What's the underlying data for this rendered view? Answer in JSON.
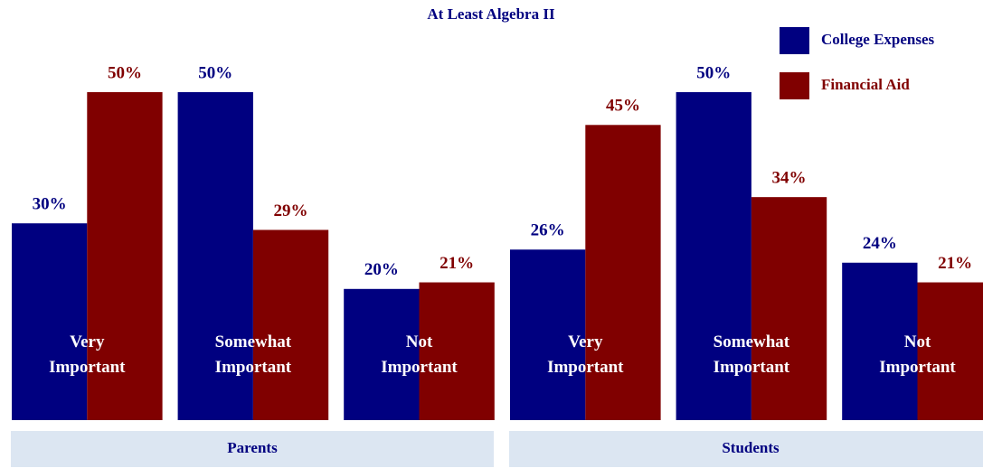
{
  "chart_data": [
    {
      "type": "bar",
      "title": "At Least Algebra II",
      "xlabel": "Parents",
      "categories": [
        "Very Important",
        "Somewhat Important",
        "Not Important"
      ],
      "ylim": [
        0,
        50
      ],
      "series": [
        {
          "name": "College Expenses",
          "color": "#000080",
          "values": [
            30,
            50,
            20
          ],
          "value_labels": [
            "30%",
            "50%",
            "20%"
          ]
        },
        {
          "name": "Financial Aid",
          "color": "#800000",
          "values": [
            50,
            29,
            21
          ],
          "value_labels": [
            "50%",
            "29%",
            "21%"
          ]
        }
      ]
    },
    {
      "type": "bar",
      "xlabel": "Students",
      "categories": [
        "Very Important",
        "Somewhat Important",
        "Not Important"
      ],
      "ylim": [
        0,
        50
      ],
      "series": [
        {
          "color": "#000080",
          "values": [
            26,
            50,
            24
          ],
          "value_labels": [
            "26%",
            "50%",
            "24%"
          ]
        },
        {
          "color": "#800000",
          "values": [
            45,
            34,
            21
          ],
          "value_labels": [
            "45%",
            "34%",
            "21%"
          ]
        }
      ]
    }
  ]
}
